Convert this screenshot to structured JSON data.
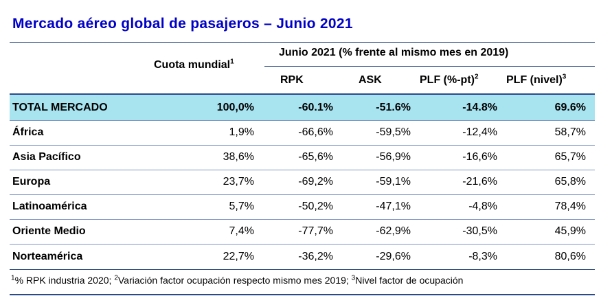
{
  "title": "Mercado aéreo global de pasajeros – Junio 2021",
  "header": {
    "share_label": "Cuota mundial",
    "share_sup": "1",
    "group_label": "Junio 2021 (% frente al mismo mes en 2019)",
    "col_rpk": "RPK",
    "col_ask": "ASK",
    "col_plf_pt": "PLF (%-pt)",
    "col_plf_pt_sup": "2",
    "col_plf_level": "PLF (nivel)",
    "col_plf_level_sup": "3"
  },
  "rows": [
    {
      "name": "TOTAL MERCADO",
      "share": "100,0%",
      "rpk": "-60.1%",
      "ask": "-51.6%",
      "plf_pt": "-14.8%",
      "plf_level": "69.6%"
    },
    {
      "name": "África",
      "share": "1,9%",
      "rpk": "-66,6%",
      "ask": "-59,5%",
      "plf_pt": "-12,4%",
      "plf_level": "58,7%"
    },
    {
      "name": "Asia Pacífico",
      "share": "38,6%",
      "rpk": "-65,6%",
      "ask": "-56,9%",
      "plf_pt": "-16,6%",
      "plf_level": "65,7%"
    },
    {
      "name": "Europa",
      "share": "23,7%",
      "rpk": "-69,2%",
      "ask": "-59,1%",
      "plf_pt": "-21,6%",
      "plf_level": "65,8%"
    },
    {
      "name": "Latinoamérica",
      "share": "5,7%",
      "rpk": "-50,2%",
      "ask": "-47,1%",
      "plf_pt": "-4,8%",
      "plf_level": "78,4%"
    },
    {
      "name": "Oriente Medio",
      "share": "7,4%",
      "rpk": "-77,7%",
      "ask": "-62,9%",
      "plf_pt": "-30,5%",
      "plf_level": "45,9%"
    },
    {
      "name": "Norteamérica",
      "share": "22,7%",
      "rpk": "-36,2%",
      "ask": "-29,6%",
      "plf_pt": "-8,3%",
      "plf_level": "80,6%"
    }
  ],
  "footnote": {
    "sup1": "1",
    "text1": "% RPK industria 2020; ",
    "sup2": "2",
    "text2": "Variación factor ocupación respecto mismo mes 2019; ",
    "sup3": "3",
    "text3": "Nivel factor de ocupación"
  },
  "colors": {
    "title": "#0000c8",
    "total_row_bg": "#a8e3f0",
    "rules": "#1f3f7a"
  }
}
